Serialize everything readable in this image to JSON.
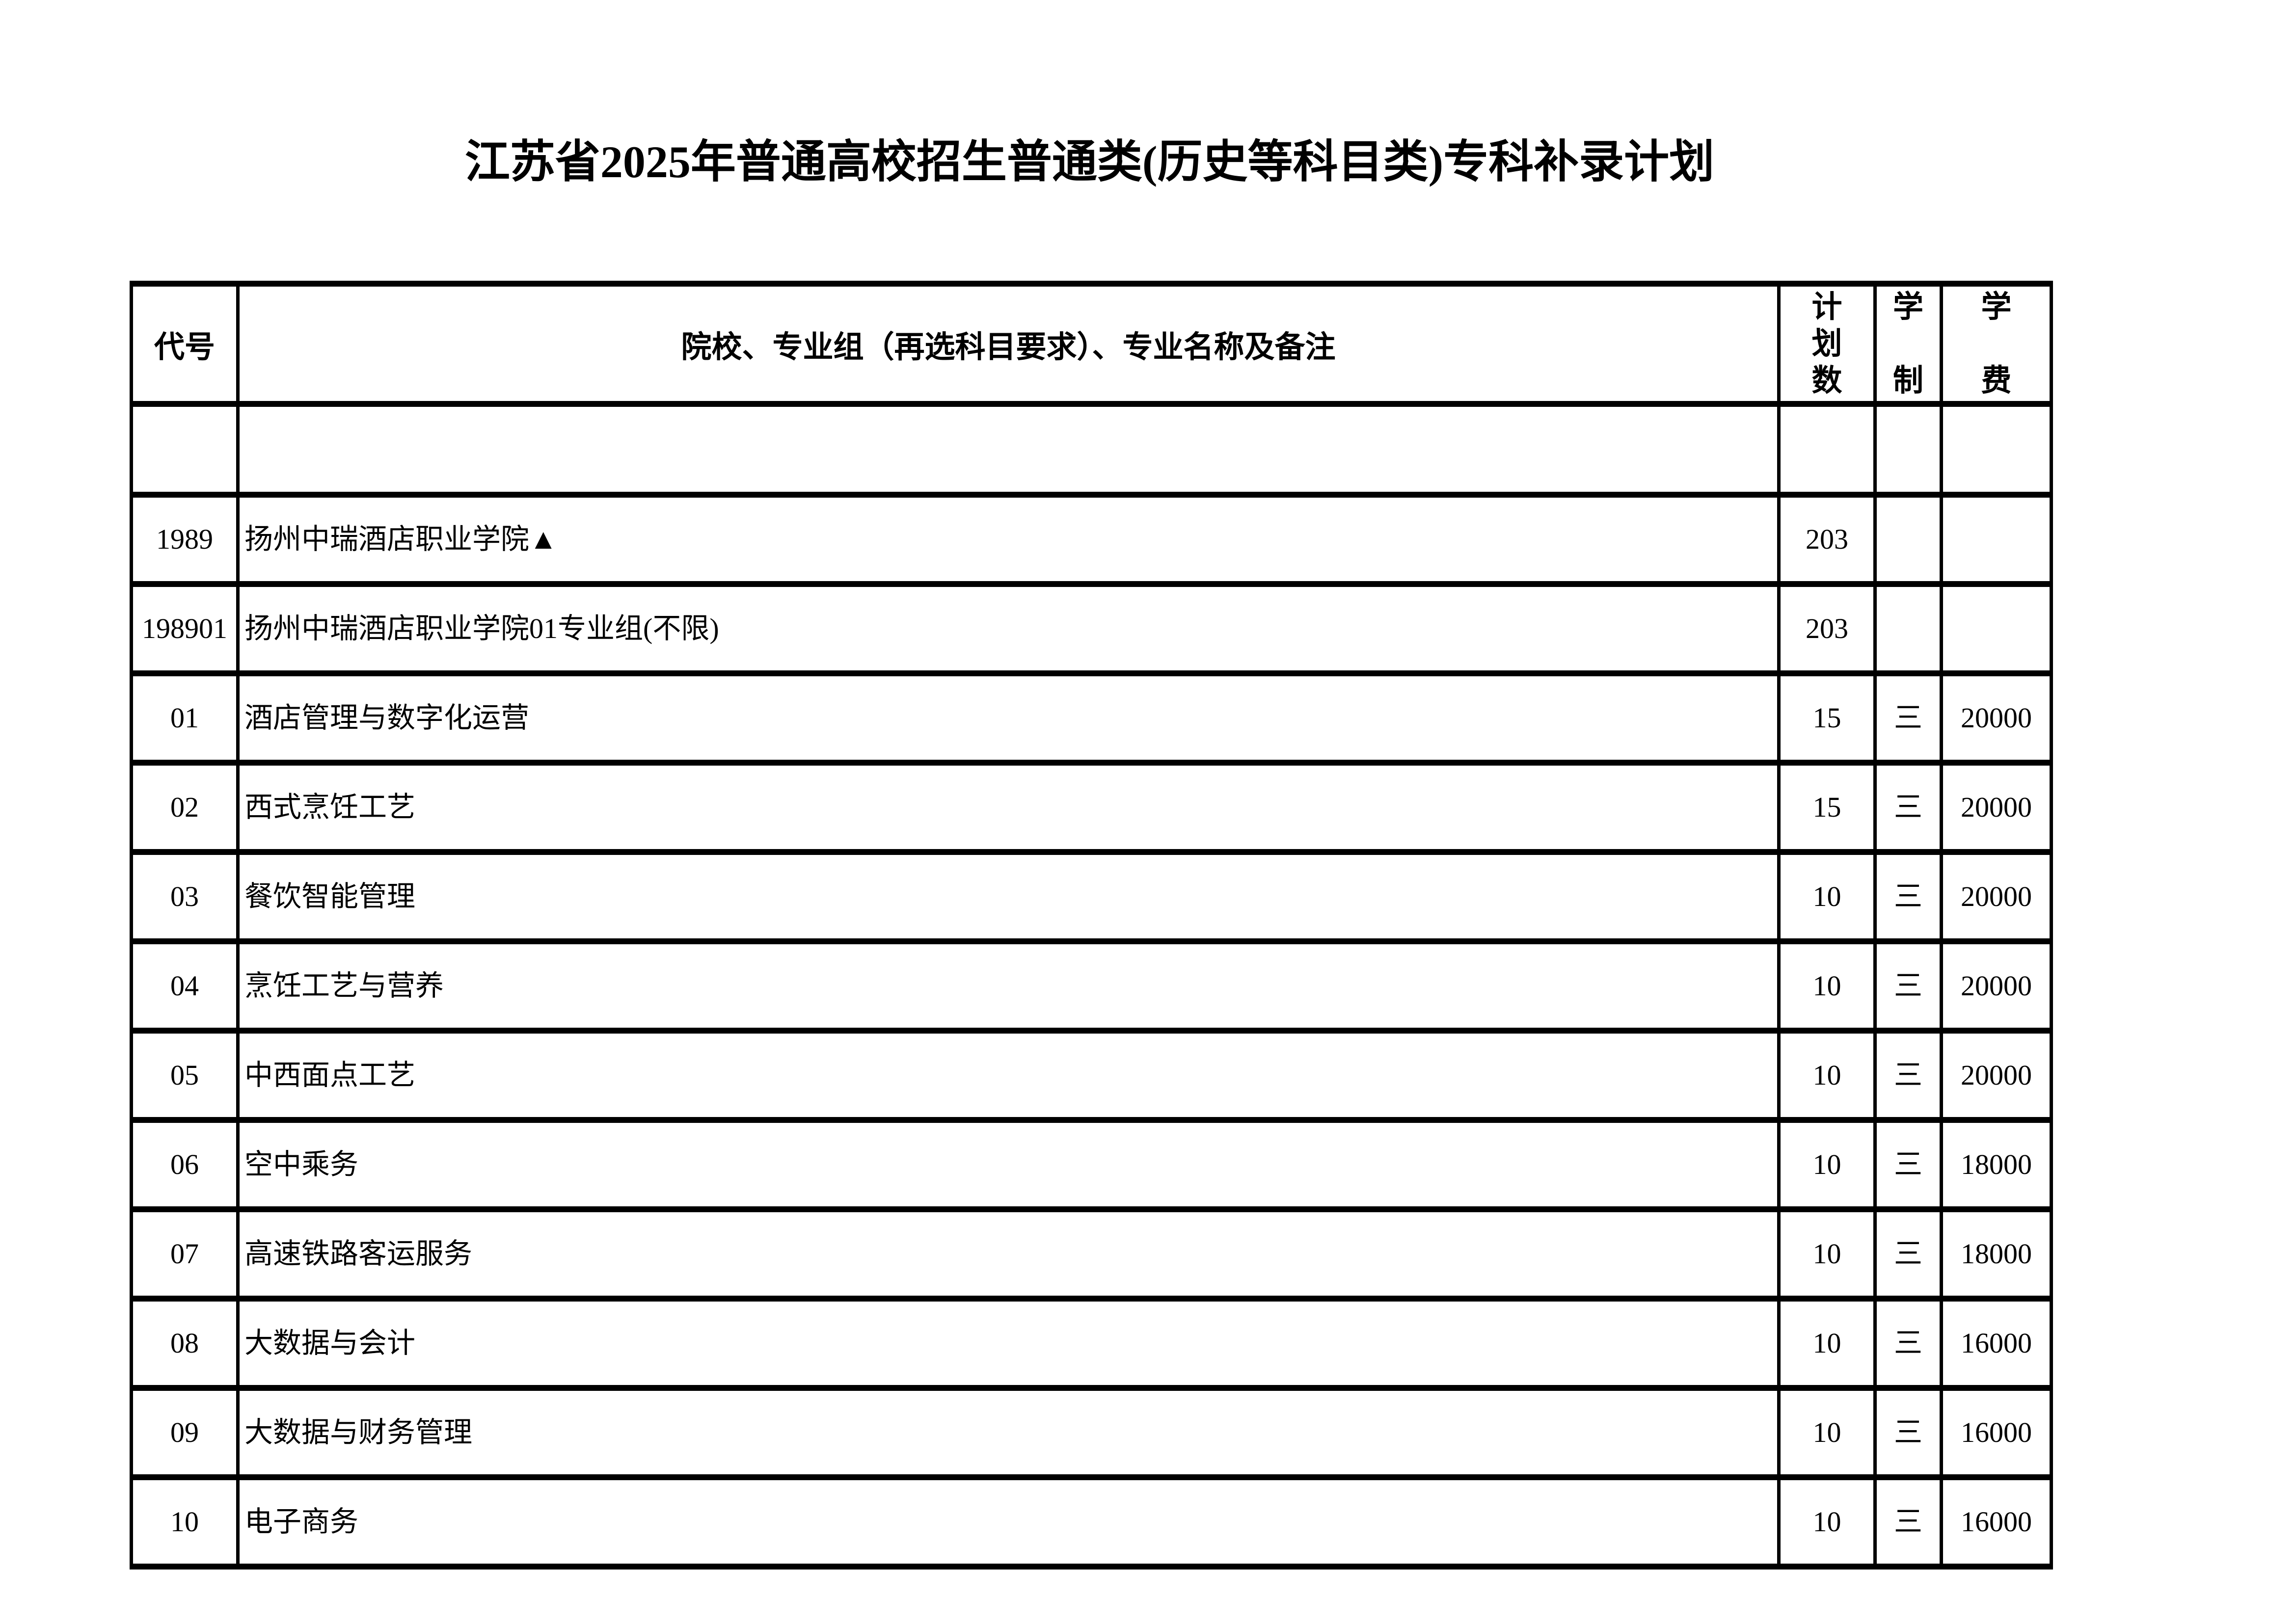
{
  "title": "江苏省2025年普通高校招生普通类(历史等科目类)专科补录计划",
  "table": {
    "headers": {
      "code": "代号",
      "name": "院校、专业组（再选科目要求）、专业名称及备注",
      "plan": "计划数",
      "duration": "学制",
      "fee": "学费"
    },
    "rows": [
      {
        "code": "",
        "name": "",
        "plan": "",
        "duration": "",
        "fee": ""
      },
      {
        "code": "1989",
        "name": "扬州中瑞酒店职业学院▲",
        "plan": "203",
        "duration": "",
        "fee": ""
      },
      {
        "code": "198901",
        "name": "扬州中瑞酒店职业学院01专业组(不限)",
        "plan": "203",
        "duration": "",
        "fee": ""
      },
      {
        "code": "01",
        "name": "酒店管理与数字化运营",
        "plan": "15",
        "duration": "三",
        "fee": "20000"
      },
      {
        "code": "02",
        "name": "西式烹饪工艺",
        "plan": "15",
        "duration": "三",
        "fee": "20000"
      },
      {
        "code": "03",
        "name": "餐饮智能管理",
        "plan": "10",
        "duration": "三",
        "fee": "20000"
      },
      {
        "code": "04",
        "name": "烹饪工艺与营养",
        "plan": "10",
        "duration": "三",
        "fee": "20000"
      },
      {
        "code": "05",
        "name": "中西面点工艺",
        "plan": "10",
        "duration": "三",
        "fee": "20000"
      },
      {
        "code": "06",
        "name": "空中乘务",
        "plan": "10",
        "duration": "三",
        "fee": "18000"
      },
      {
        "code": "07",
        "name": "高速铁路客运服务",
        "plan": "10",
        "duration": "三",
        "fee": "18000"
      },
      {
        "code": "08",
        "name": "大数据与会计",
        "plan": "10",
        "duration": "三",
        "fee": "16000"
      },
      {
        "code": "09",
        "name": "大数据与财务管理",
        "plan": "10",
        "duration": "三",
        "fee": "16000"
      },
      {
        "code": "10",
        "name": "电子商务",
        "plan": "10",
        "duration": "三",
        "fee": "16000"
      }
    ]
  }
}
